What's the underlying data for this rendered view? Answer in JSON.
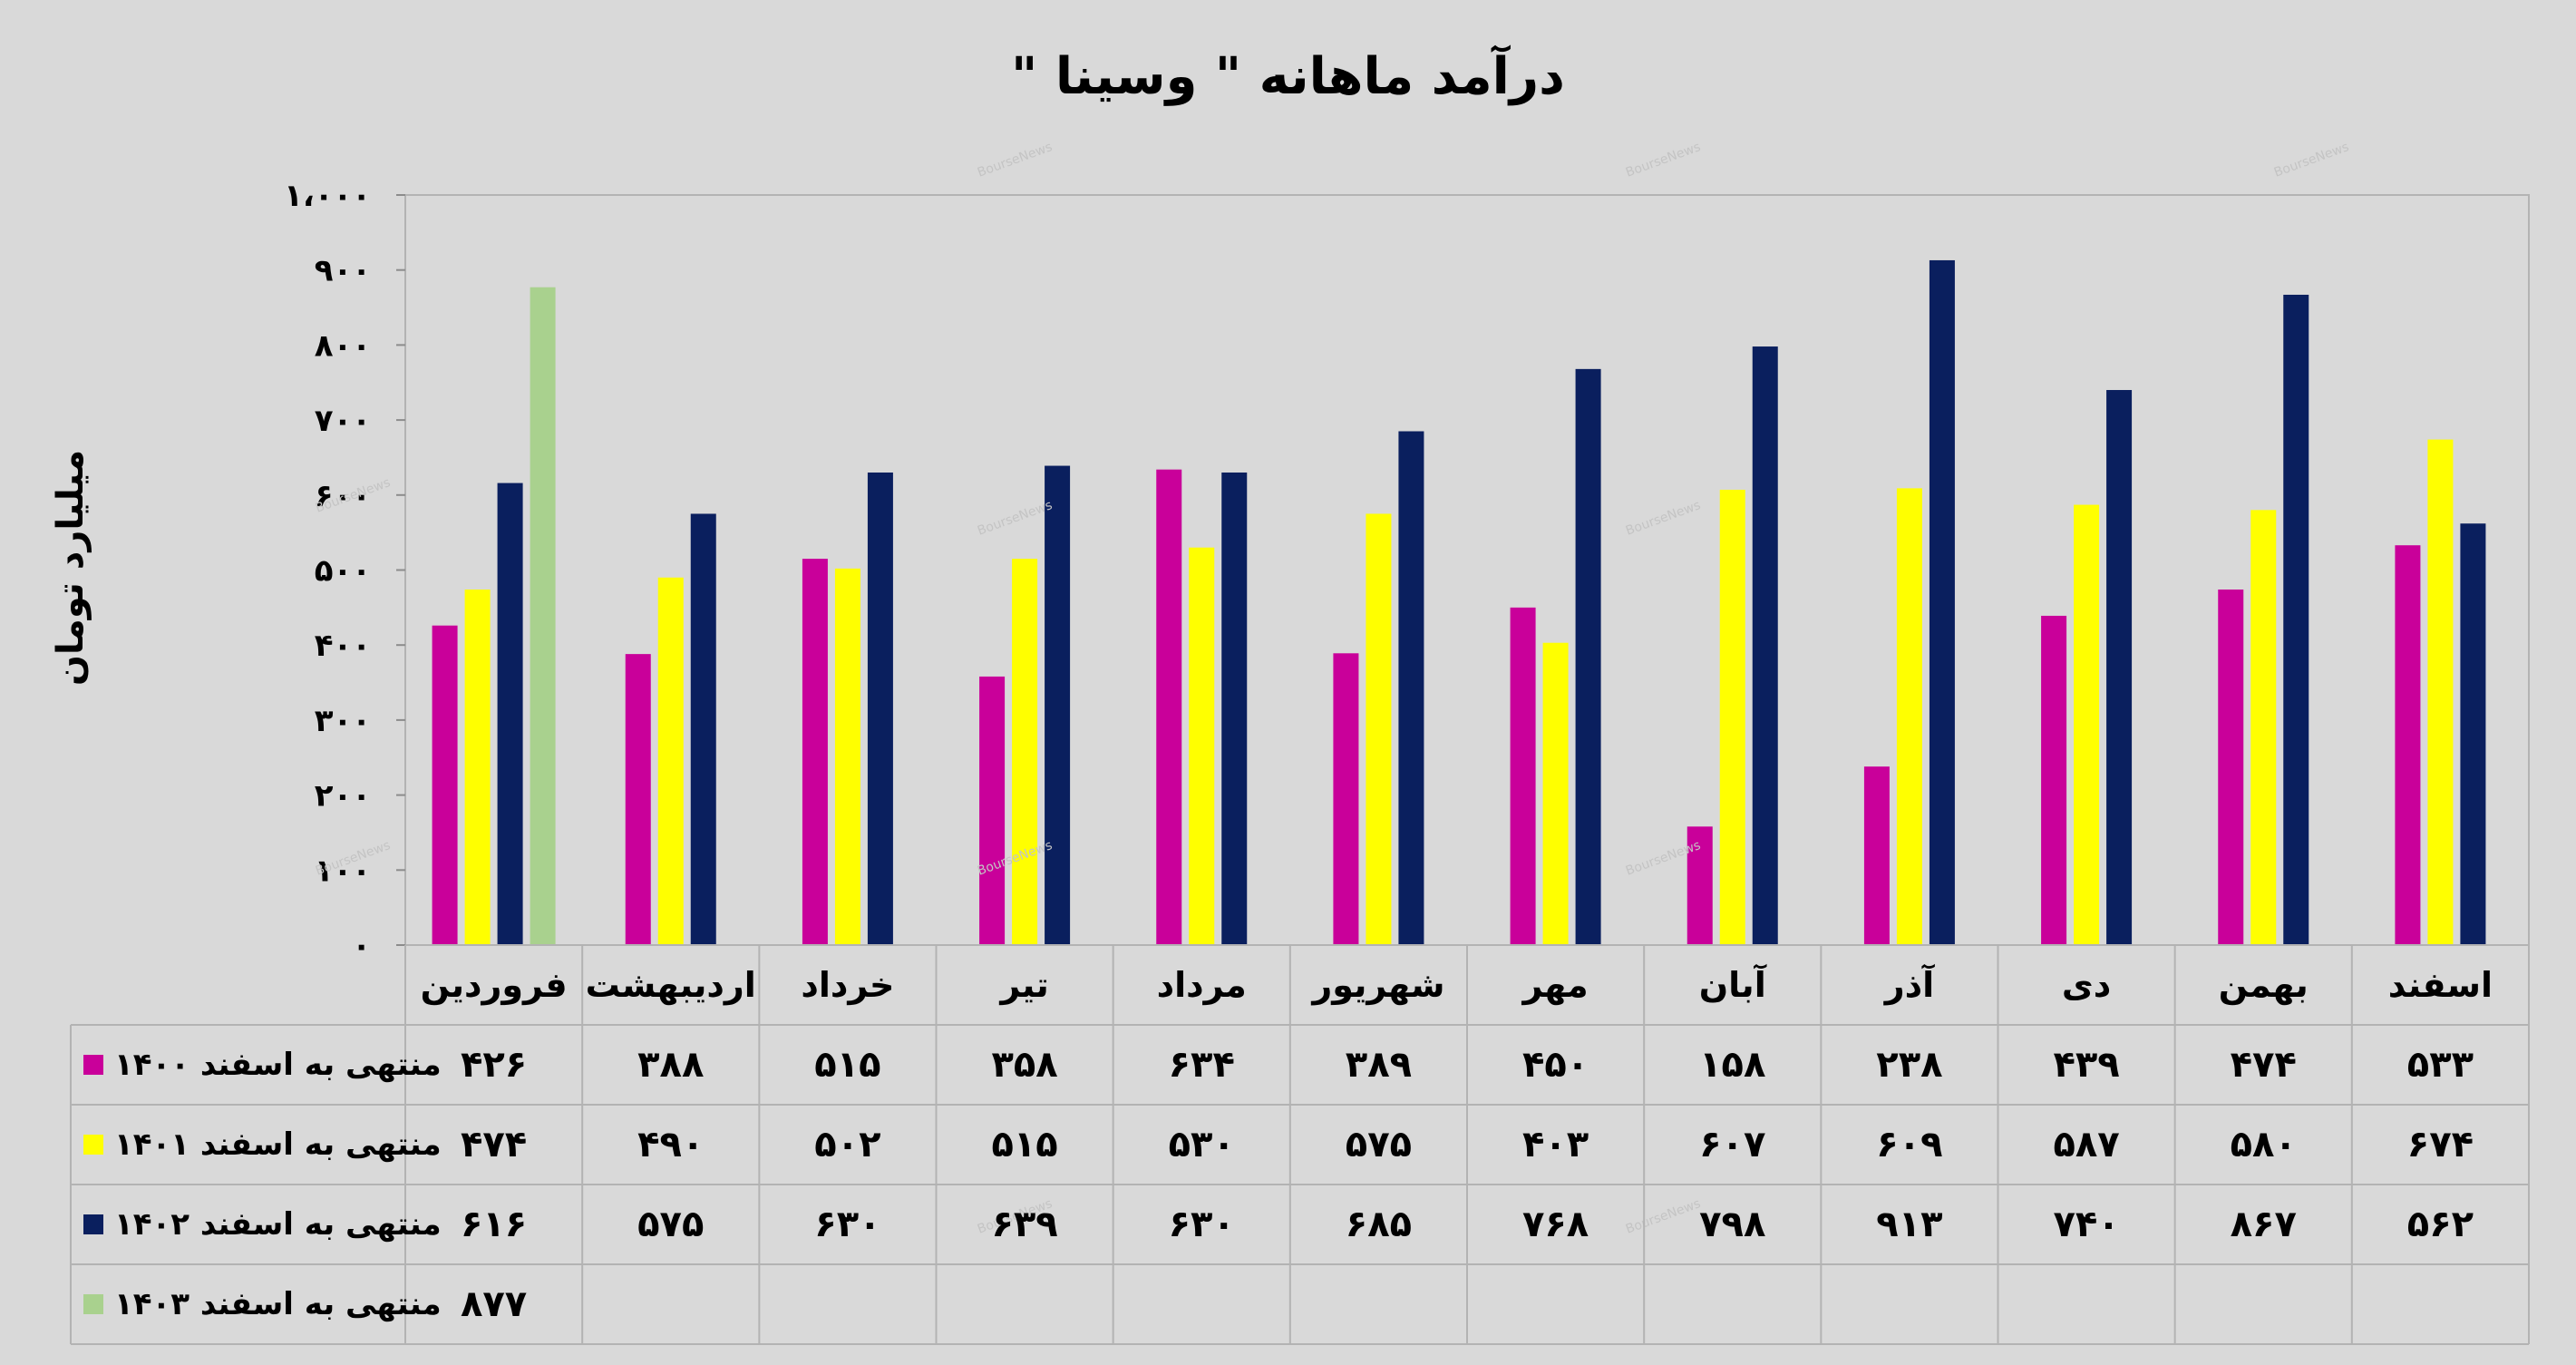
{
  "chart_data": {
    "type": "bar",
    "title": "درآمد ماهانه \" وسینا \"",
    "xlabel": "",
    "ylabel": "میلیارد تومان",
    "ylim": [
      0,
      1000
    ],
    "yticks": [
      {
        "value": 0,
        "label": "۰"
      },
      {
        "value": 100,
        "label": "۱۰۰"
      },
      {
        "value": 200,
        "label": "۲۰۰"
      },
      {
        "value": 300,
        "label": "۳۰۰"
      },
      {
        "value": 400,
        "label": "۴۰۰"
      },
      {
        "value": 500,
        "label": "۵۰۰"
      },
      {
        "value": 600,
        "label": "۶۰۰"
      },
      {
        "value": 700,
        "label": "۷۰۰"
      },
      {
        "value": 800,
        "label": "۸۰۰"
      },
      {
        "value": 900,
        "label": "۹۰۰"
      },
      {
        "value": 1000,
        "label": "۱،۰۰۰"
      }
    ],
    "grid": false,
    "legend_placement": "data-table",
    "categories": [
      "فروردین",
      "اردیبهشت",
      "خرداد",
      "تیر",
      "مرداد",
      "شهریور",
      "مهر",
      "آبان",
      "آذر",
      "دی",
      "بهمن",
      "اسفند"
    ],
    "series": [
      {
        "name": "منتهی به اسفند ۱۴۰۰",
        "color": "#c9009a",
        "values": [
          426,
          388,
          515,
          358,
          634,
          389,
          450,
          158,
          238,
          439,
          474,
          533
        ],
        "labels": [
          "۴۲۶",
          "۳۸۸",
          "۵۱۵",
          "۳۵۸",
          "۶۳۴",
          "۳۸۹",
          "۴۵۰",
          "۱۵۸",
          "۲۳۸",
          "۴۳۹",
          "۴۷۴",
          "۵۳۳"
        ]
      },
      {
        "name": "منتهی به اسفند ۱۴۰۱",
        "color": "#ffff00",
        "values": [
          474,
          490,
          502,
          515,
          530,
          575,
          403,
          607,
          609,
          587,
          580,
          674
        ],
        "labels": [
          "۴۷۴",
          "۴۹۰",
          "۵۰۲",
          "۵۱۵",
          "۵۳۰",
          "۵۷۵",
          "۴۰۳",
          "۶۰۷",
          "۶۰۹",
          "۵۸۷",
          "۵۸۰",
          "۶۷۴"
        ]
      },
      {
        "name": "منتهی به اسفند ۱۴۰۲",
        "color": "#0a1f5e",
        "values": [
          616,
          575,
          630,
          639,
          630,
          685,
          768,
          798,
          913,
          740,
          867,
          562
        ],
        "labels": [
          "۶۱۶",
          "۵۷۵",
          "۶۳۰",
          "۶۳۹",
          "۶۳۰",
          "۶۸۵",
          "۷۶۸",
          "۷۹۸",
          "۹۱۳",
          "۷۴۰",
          "۸۶۷",
          "۵۶۲"
        ]
      },
      {
        "name": "منتهی به اسفند ۱۴۰۳",
        "color": "#a9d18e",
        "values": [
          877,
          null,
          null,
          null,
          null,
          null,
          null,
          null,
          null,
          null,
          null,
          null
        ],
        "labels": [
          "۸۷۷",
          "",
          "",
          "",
          "",
          "",
          "",
          "",
          "",
          "",
          "",
          ""
        ]
      }
    ]
  },
  "watermark": "BourseNews"
}
